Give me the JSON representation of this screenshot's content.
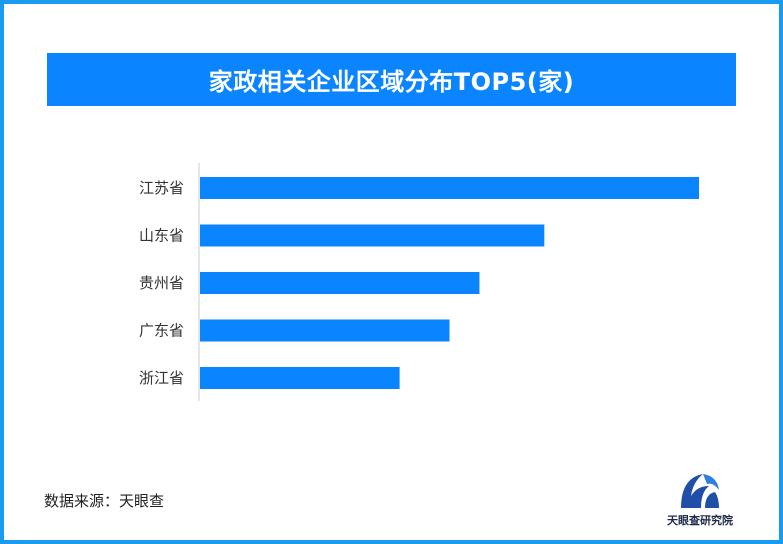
{
  "title": "家政相关企业区域分布TOP5(家)",
  "source": "数据来源：天眼查",
  "logo": {
    "text": "天眼查研究院",
    "icon": "tianyancha-logo-icon"
  },
  "colors": {
    "bar": "#0a84ff",
    "title_bg": "#0a84ff",
    "border": "#1a9bf0",
    "axis": "#cccccc"
  },
  "chart_data": {
    "type": "bar",
    "orientation": "horizontal",
    "categories": [
      "江苏省",
      "山东省",
      "贵州省",
      "广东省",
      "浙江省"
    ],
    "values": [
      100,
      69,
      56,
      50,
      40
    ],
    "xlim": [
      0,
      100
    ],
    "grid": false,
    "legend": "none"
  }
}
